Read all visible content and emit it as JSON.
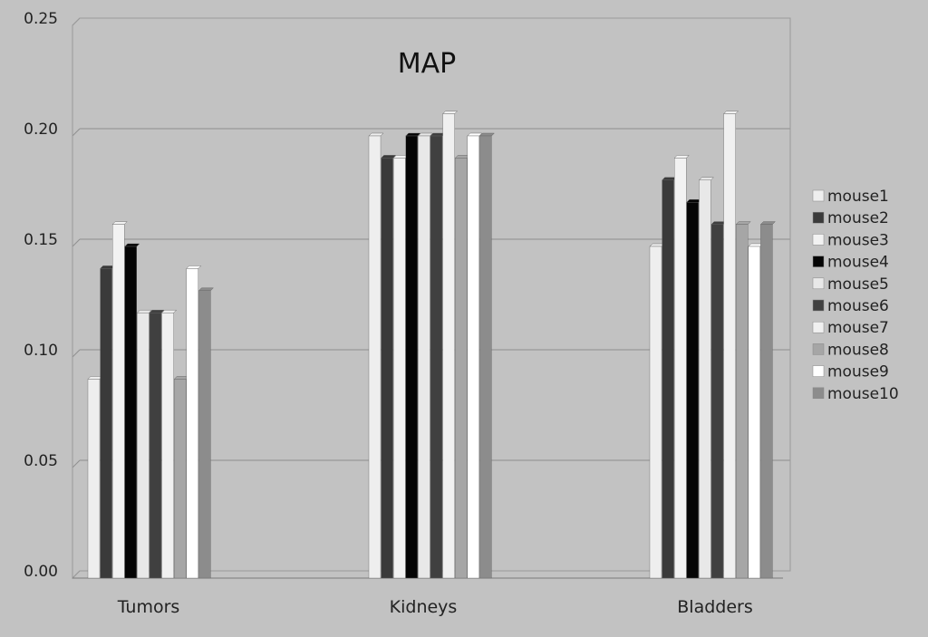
{
  "chart_data": {
    "type": "bar",
    "title": "MAP",
    "xlabel": "",
    "ylabel": "",
    "ylim": [
      0,
      0.25
    ],
    "yticks": [
      "0.00",
      "0.05",
      "0.10",
      "0.15",
      "0.20",
      "0.25"
    ],
    "grid": true,
    "legend_position": "right",
    "categories": [
      "Tumors",
      "Kidneys",
      "Bladders"
    ],
    "series": [
      {
        "name": "mouse1",
        "color": "#eeeeee",
        "values": [
          0.09,
          0.2,
          0.15
        ]
      },
      {
        "name": "mouse2",
        "color": "#3a3a3a",
        "values": [
          0.14,
          0.19,
          0.18
        ]
      },
      {
        "name": "mouse3",
        "color": "#f2f2f2",
        "values": [
          0.16,
          0.19,
          0.19
        ]
      },
      {
        "name": "mouse4",
        "color": "#050505",
        "values": [
          0.15,
          0.2,
          0.17
        ]
      },
      {
        "name": "mouse5",
        "color": "#e8e8e8",
        "values": [
          0.12,
          0.2,
          0.18
        ]
      },
      {
        "name": "mouse6",
        "color": "#404040",
        "values": [
          0.12,
          0.2,
          0.16
        ]
      },
      {
        "name": "mouse7",
        "color": "#f0f0f0",
        "values": [
          0.12,
          0.21,
          0.21
        ]
      },
      {
        "name": "mouse8",
        "color": "#a6a6a6",
        "values": [
          0.09,
          0.19,
          0.16
        ]
      },
      {
        "name": "mouse9",
        "color": "#ffffff",
        "values": [
          0.14,
          0.2,
          0.15
        ]
      },
      {
        "name": "mouse10",
        "color": "#8c8c8c",
        "values": [
          0.13,
          0.2,
          0.16
        ]
      }
    ]
  }
}
